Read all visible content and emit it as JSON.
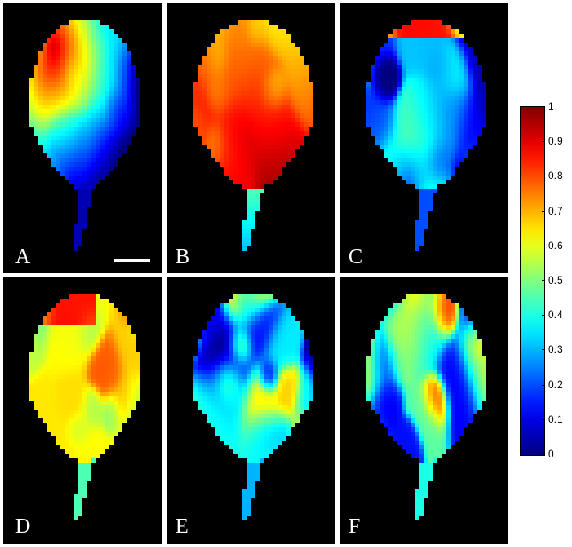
{
  "panels": [
    {
      "id": "A",
      "label": "A",
      "pattern": "blob-topleft"
    },
    {
      "id": "B",
      "label": "B",
      "pattern": "warm-bottom"
    },
    {
      "id": "C",
      "label": "C",
      "pattern": "blue-speckle"
    },
    {
      "id": "D",
      "label": "D",
      "pattern": "warm-speckle"
    },
    {
      "id": "E",
      "label": "E",
      "pattern": "cool-speckle"
    },
    {
      "id": "F",
      "label": "F",
      "pattern": "mixed-speckle"
    }
  ],
  "colorbar": {
    "ticks": [
      "1",
      "0.9",
      "0.8",
      "0.7",
      "0.6",
      "0.5",
      "0.4",
      "0.3",
      "0.2",
      "0.1",
      "0"
    ],
    "colormap": "jet",
    "min": 0,
    "max": 1
  }
}
